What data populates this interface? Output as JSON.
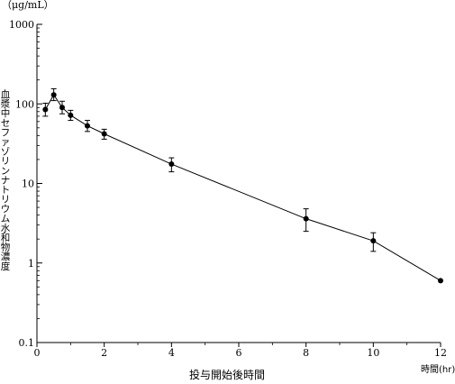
{
  "chart_data": {
    "type": "line",
    "y_scale": "log",
    "xlim": [
      0,
      12
    ],
    "ylim": [
      0.1,
      1000
    ],
    "x_ticks": [
      0,
      2,
      4,
      6,
      8,
      10,
      12
    ],
    "y_ticks": [
      0.1,
      1,
      10,
      100,
      1000
    ],
    "x_tick_labels": [
      "0",
      "2",
      "4",
      "6",
      "8",
      "10",
      "12"
    ],
    "y_tick_labels": [
      "0.1",
      "1",
      "10",
      "100",
      "1000"
    ],
    "y_unit": "（μg/mL）",
    "xlabel": "投与開始後時間",
    "x_unit": "時間(hr)",
    "ylabel": "血漿中セファゾリンナトリウム水和物濃度",
    "grid": false,
    "series": [
      {
        "x": [
          0.25,
          0.5,
          0.75,
          1,
          1.5,
          2,
          4,
          8,
          10,
          12
        ],
        "y": [
          85,
          130,
          90,
          72,
          53,
          42,
          17.5,
          3.6,
          1.9,
          0.6
        ],
        "err_lower": [
          70,
          110,
          75,
          62,
          45,
          36,
          14,
          2.5,
          1.4,
          0.6
        ],
        "err_upper": [
          102,
          155,
          108,
          83,
          62,
          48,
          21,
          4.8,
          2.4,
          0.6
        ]
      }
    ]
  }
}
